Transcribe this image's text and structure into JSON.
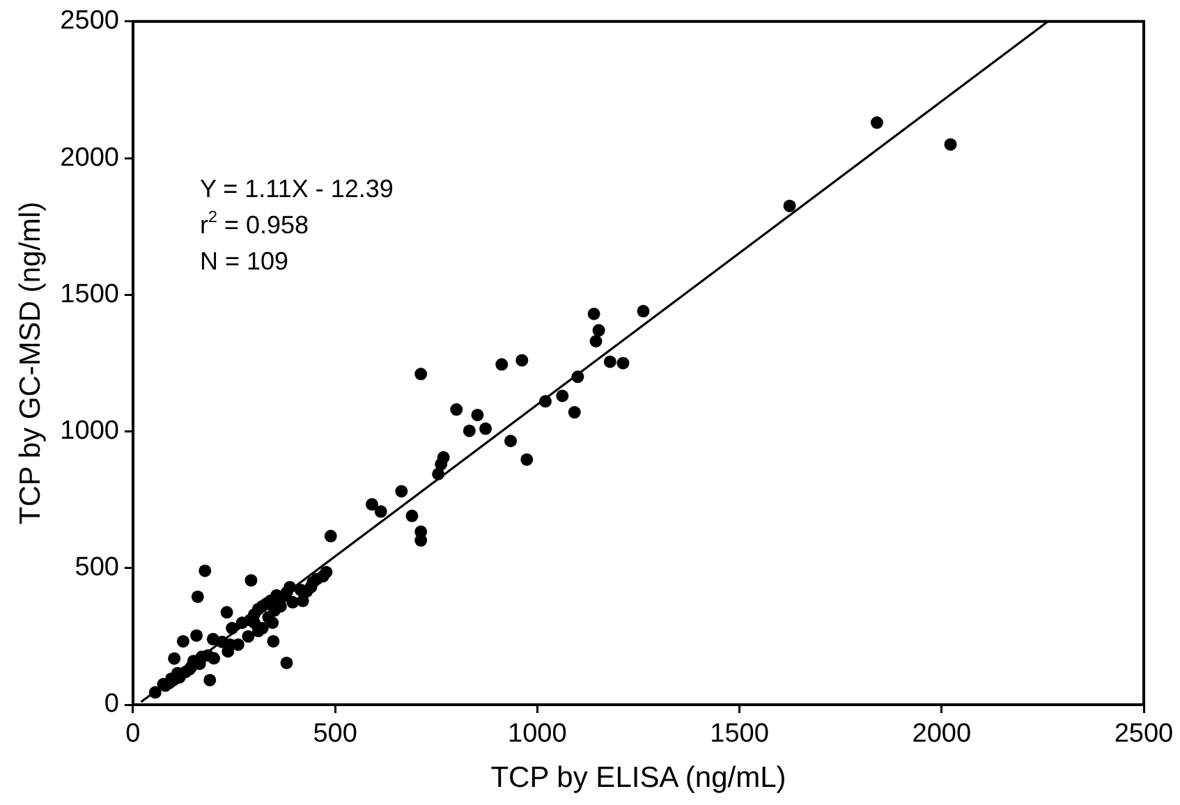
{
  "chart_data": {
    "type": "scatter",
    "xlabel": "TCP by ELISA (ng/mL)",
    "ylabel": "TCP by GC-MSD (ng/ml)",
    "xlim": [
      0,
      2500
    ],
    "xticks": [
      0,
      500,
      1000,
      1500,
      2000,
      2500
    ],
    "ylim": [
      0,
      2500
    ],
    "yticks": [
      0,
      500,
      1000,
      1500,
      2000,
      2500
    ],
    "grid": false,
    "legend": false,
    "marker": "circle",
    "annotations": [
      "Y = 1.11X - 12.39",
      "r$^{2}$ = 0.958",
      "N = 109"
    ],
    "series": [
      {
        "color": "#000000",
        "x": [
          1840,
          2022,
          1624,
          1140,
          1262,
          1152,
          1145,
          1180,
          1212,
          1100,
          1092,
          1062,
          1020,
          962,
          912,
          974,
          934,
          872,
          852,
          832,
          800,
          768,
          762,
          755,
          712,
          664,
          712,
          712,
          690,
          613,
          591,
          489,
          478,
          470,
          455,
          445,
          440,
          430,
          415,
          395,
          388,
          380,
          370,
          355,
          345,
          347,
          380,
          340,
          330,
          320,
          310,
          300,
          292,
          300,
          290,
          270,
          245,
          240,
          232,
          220,
          198,
          190,
          185,
          178,
          170,
          160,
          157,
          150,
          145,
          140,
          130,
          124,
          115,
          110,
          102,
          100,
          95,
          90,
          80,
          75,
          55,
          320,
          335,
          350,
          365,
          420,
          260,
          235,
          200,
          165,
          310,
          285
        ],
        "values": [
          2130,
          2050,
          1825,
          1430,
          1440,
          1370,
          1330,
          1255,
          1250,
          1200,
          1070,
          1130,
          1110,
          1260,
          1245,
          897,
          965,
          1010,
          1060,
          1002,
          1080,
          905,
          880,
          844,
          1210,
          781,
          633,
          601,
          691,
          707,
          733,
          617,
          485,
          470,
          460,
          448,
          430,
          415,
          420,
          375,
          430,
          410,
          395,
          400,
          300,
          232,
          153,
          380,
          370,
          360,
          350,
          330,
          455,
          300,
          310,
          300,
          280,
          220,
          338,
          230,
          240,
          90,
          180,
          490,
          175,
          395,
          253,
          160,
          140,
          130,
          120,
          232,
          100,
          115,
          169,
          90,
          95,
          80,
          70,
          75,
          45,
          280,
          320,
          345,
          360,
          380,
          220,
          195,
          170,
          150,
          270,
          250
        ]
      },
      {
        "type": "line",
        "color": "#000000",
        "marker": "none",
        "line_style": "solid",
        "x": [
          20,
          2263
        ],
        "values": [
          10,
          2500
        ]
      }
    ]
  }
}
